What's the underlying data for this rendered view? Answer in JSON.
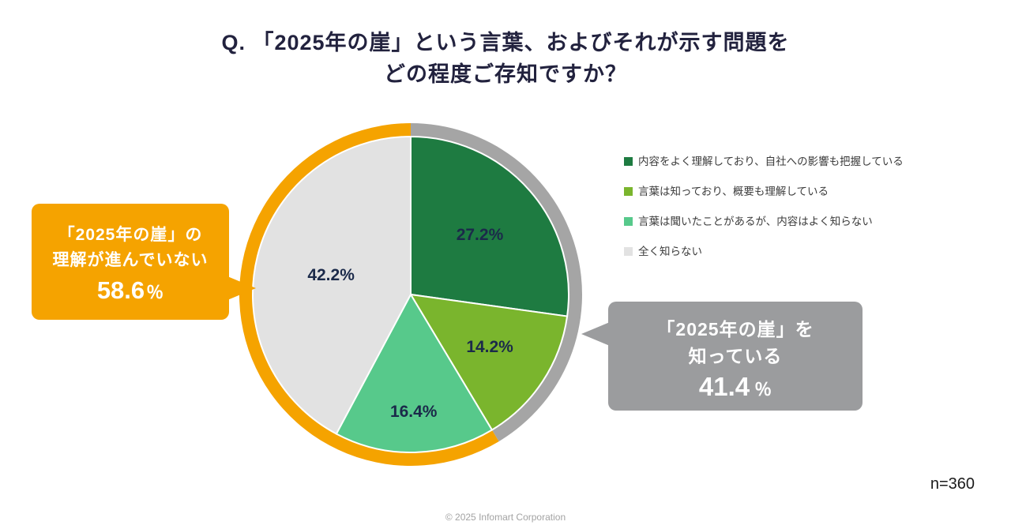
{
  "title": {
    "line1": "Q. 「2025年の崖」という言葉、およびそれが示す問題を",
    "line2": "どの程度ご存知ですか？"
  },
  "chart_data": {
    "type": "pie",
    "title": "Q. 「2025年の崖」という言葉、およびそれが示す問題をどの程度ご存知ですか？",
    "start_angle_deg": 0,
    "direction": "clockwise",
    "legend_position": "right",
    "slices": [
      {
        "label": "内容をよく理解しており、自社への影響も把握している",
        "value": 27.2,
        "display": "27.2%",
        "color": "#1e7b41"
      },
      {
        "label": "言葉は知っており、概要も理解している",
        "value": 14.2,
        "display": "14.2%",
        "color": "#7ab52d"
      },
      {
        "label": "言葉は聞いたことがあるが、内容はよく知らない",
        "value": 16.4,
        "display": "16.4%",
        "color": "#57c98b"
      },
      {
        "label": "全く知らない",
        "value": 42.2,
        "display": "42.2%",
        "color": "#e2e2e2"
      }
    ],
    "outer_ring": [
      {
        "label": "「2025年の崖」を知っている",
        "value": 41.4,
        "color": "#a5a5a5"
      },
      {
        "label": "「2025年の崖」の理解が進んでいない",
        "value": 58.6,
        "color": "#f5a300"
      }
    ],
    "annotations": [
      {
        "text": "「2025年の崖」の理解が進んでいない 58.6%"
      },
      {
        "text": "「2025年の崖」を知っている 41.4 %"
      }
    ],
    "sample_note": "n=360"
  },
  "callout_left": {
    "line1": "「2025年の崖」の",
    "line2": "理解が進んでいない",
    "value": "58.6",
    "unit": "％"
  },
  "callout_right": {
    "line1": "「2025年の崖」を",
    "line2": "知っている",
    "value": "41.4",
    "unit": "％"
  },
  "sample_size": "n=360",
  "footer": "© 2025 Infomart Corporation"
}
